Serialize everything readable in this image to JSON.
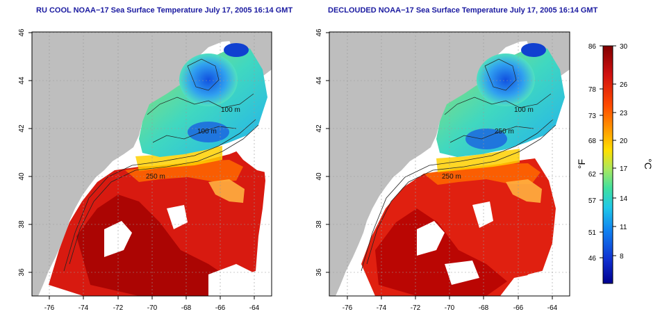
{
  "panels": [
    {
      "id": "left",
      "title": "RU COOL NOAA−17 Sea Surface Temperature July 17, 2005 16:14 GMT"
    },
    {
      "id": "right",
      "title": "DECLOUDED NOAA−17 Sea Surface Temperature July 17, 2005 16:14 GMT"
    }
  ],
  "map_axes": {
    "lon_ticks": [
      "-76",
      "-74",
      "-72",
      "-70",
      "-68",
      "-66",
      "-64"
    ],
    "lat_ticks": [
      "36",
      "38",
      "40",
      "42",
      "44",
      "46"
    ],
    "lon_range": [
      -77,
      -63
    ],
    "lat_range": [
      35,
      46
    ]
  },
  "contour_labels": [
    "100 m",
    "100 m",
    "250 m",
    "250 m",
    "100 m"
  ],
  "colorbar": {
    "fahrenheit_ticks": [
      "86",
      "78",
      "73",
      "68",
      "62",
      "57",
      "51",
      "46"
    ],
    "celsius_ticks": [
      "30",
      "26",
      "23",
      "20",
      "17",
      "14",
      "11",
      "8"
    ],
    "fahrenheit_label": "°F",
    "celsius_label": "°C",
    "range_celsius": [
      5,
      30
    ]
  },
  "colors": {
    "land": "#bebebe",
    "cloud": "#ffffff",
    "title": "#1a1aa0",
    "warm": "#d01010",
    "cold": "#1030d0"
  }
}
